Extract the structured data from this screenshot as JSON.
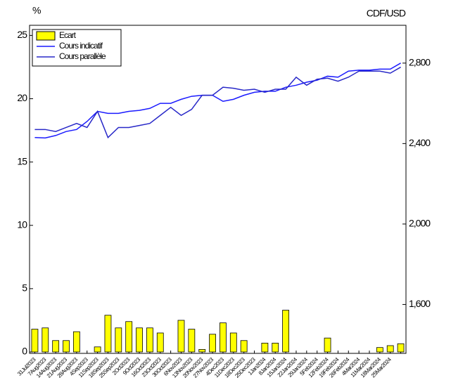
{
  "chart_data": {
    "type": "bar-line",
    "y_label": "%",
    "y2_label": "CDF/USD",
    "categories": [
      "31Jul2023",
      "7Aug2023",
      "14Aug2023",
      "21Aug2023",
      "28Aug2023",
      "4Sep2023",
      "11Sep2023",
      "18Sep2023",
      "25Sep2023",
      "2Oct2023",
      "9Oct2023",
      "16Oct2023",
      "23Oct2023",
      "30Oct2023",
      "6Nov2023",
      "13Nov2023",
      "20Nov2023",
      "27Nov2023",
      "4Dec2023",
      "11Dec2023",
      "18Dec2023",
      "25Dec2023",
      "1Jan2024",
      "8Jan2024",
      "15Jan2024",
      "22Jan2024",
      "29Jan2024",
      "5Feb2024",
      "12Feb2024",
      "19Feb2024",
      "26Feb2024",
      "4Mar2024",
      "11Mar2024",
      "18Mar2024",
      "25Mar2024",
      null
    ],
    "series": [
      {
        "name": "Ecart",
        "type": "bar",
        "axis": "y",
        "color": "#ffff00",
        "values": [
          1.8,
          1.9,
          0.9,
          0.9,
          1.6,
          0,
          0.4,
          2.9,
          1.9,
          2.4,
          1.9,
          1.9,
          1.5,
          0,
          2.5,
          1.8,
          0.2,
          1.4,
          2.3,
          1.5,
          0.9,
          0,
          0.7,
          0.7,
          3.3,
          0,
          0,
          0,
          1.1,
          0,
          0,
          0,
          0,
          0.35,
          0.5,
          0.65
        ]
      },
      {
        "name": "Cours indicatif",
        "type": "line",
        "axis": "y2",
        "color": "#1a1aff",
        "values": [
          2430,
          2428,
          2440,
          2460,
          2470,
          2510,
          2560,
          2550,
          2550,
          2560,
          2565,
          2575,
          2600,
          2600,
          2620,
          2635,
          2640,
          2640,
          2610,
          2620,
          2640,
          2655,
          2660,
          2660,
          2680,
          2690,
          2705,
          2715,
          2735,
          2730,
          2760,
          2765,
          2765,
          2770,
          2770,
          2800
        ]
      },
      {
        "name": "Cours parallèle",
        "type": "line",
        "axis": "y2",
        "color": "#2828c8",
        "values": [
          2470,
          2470,
          2460,
          2480,
          2500,
          2480,
          2560,
          2430,
          2480,
          2480,
          2490,
          2500,
          2540,
          2580,
          2540,
          2570,
          2640,
          2640,
          2680,
          2675,
          2665,
          2670,
          2655,
          2670,
          2670,
          2730,
          2690,
          2720,
          2725,
          2710,
          2730,
          2760,
          2760,
          2760,
          2750,
          2780
        ]
      }
    ],
    "ylim": [
      0,
      25.8
    ],
    "yticks": [
      0,
      5,
      10,
      15,
      20,
      25
    ],
    "y2lim": [
      1364,
      2988
    ],
    "y2ticks": [
      {
        "value": 1600,
        "label": "1,600"
      },
      {
        "value": 2000,
        "label": "2,000"
      },
      {
        "value": 2400,
        "label": "2,400"
      },
      {
        "value": 2800,
        "label": "2,800"
      }
    ],
    "legend": "upper left"
  }
}
